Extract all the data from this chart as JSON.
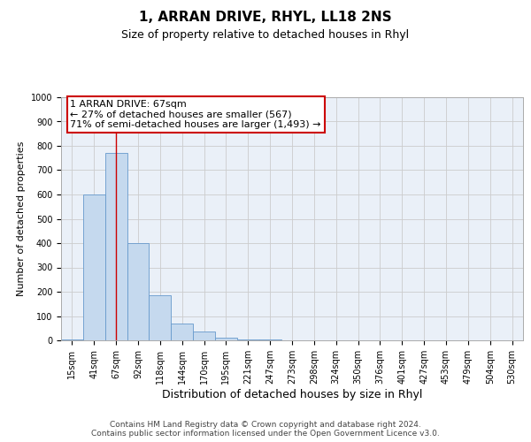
{
  "title": "1, ARRAN DRIVE, RHYL, LL18 2NS",
  "subtitle": "Size of property relative to detached houses in Rhyl",
  "xlabel": "Distribution of detached houses by size in Rhyl",
  "ylabel": "Number of detached properties",
  "categories": [
    "15sqm",
    "41sqm",
    "67sqm",
    "92sqm",
    "118sqm",
    "144sqm",
    "170sqm",
    "195sqm",
    "221sqm",
    "247sqm",
    "273sqm",
    "298sqm",
    "324sqm",
    "350sqm",
    "376sqm",
    "401sqm",
    "427sqm",
    "453sqm",
    "479sqm",
    "504sqm",
    "530sqm"
  ],
  "bar_values": [
    5,
    600,
    770,
    400,
    185,
    70,
    35,
    10,
    5,
    5,
    0,
    0,
    0,
    0,
    0,
    0,
    0,
    0,
    0,
    0,
    0
  ],
  "bar_color": "#c5d9ee",
  "bar_edge_color": "#6699cc",
  "grid_color": "#cccccc",
  "bg_color": "#eaf0f8",
  "property_line_x": 2,
  "property_line_color": "#cc0000",
  "ylim": [
    0,
    1000
  ],
  "annotation_text": "1 ARRAN DRIVE: 67sqm\n← 27% of detached houses are smaller (567)\n71% of semi-detached houses are larger (1,493) →",
  "annotation_box_color": "#ffffff",
  "annotation_box_edge_color": "#cc0000",
  "footer": "Contains HM Land Registry data © Crown copyright and database right 2024.\nContains public sector information licensed under the Open Government Licence v3.0.",
  "title_fontsize": 11,
  "subtitle_fontsize": 9,
  "ylabel_fontsize": 8,
  "xlabel_fontsize": 9,
  "tick_fontsize": 7,
  "annotation_fontsize": 8,
  "footer_fontsize": 6.5
}
